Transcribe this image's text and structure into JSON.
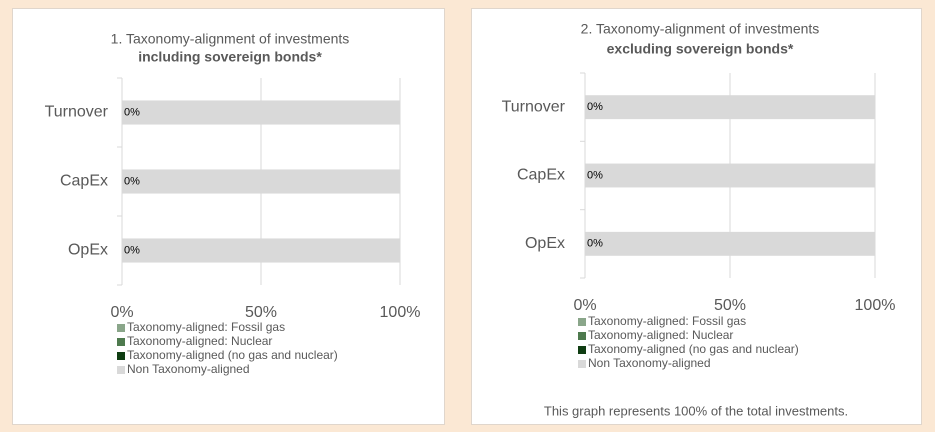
{
  "chart_data": [
    {
      "type": "stacked-barh",
      "title": "1. Taxonomy-alignment of investments",
      "subtitle": "including sovereign bonds*",
      "categories": [
        "Turnover",
        "CapEx",
        "OpEx"
      ],
      "series": [
        {
          "name": "Taxonomy-aligned: Fossil gas",
          "color": "#8aa68a",
          "values": [
            0,
            0,
            0
          ],
          "value_labels": [
            "0%",
            "0%",
            "0%"
          ]
        },
        {
          "name": "Taxonomy-aligned: Nuclear",
          "color": "#4e7a4e",
          "values": [
            0,
            0,
            0
          ]
        },
        {
          "name": "Taxonomy-aligned (no gas and nuclear)",
          "color": "#0f3d12",
          "values": [
            0,
            0,
            0
          ]
        },
        {
          "name": "Non Taxonomy-aligned",
          "color": "#d9d9d9",
          "values": [
            100,
            100,
            100
          ]
        }
      ],
      "xlim": [
        0,
        100
      ],
      "xticks": [
        {
          "value": 0,
          "label": "0%"
        },
        {
          "value": 50,
          "label": "50%"
        },
        {
          "value": 100,
          "label": "100%"
        }
      ],
      "grid": true
    },
    {
      "type": "stacked-barh",
      "title": "2. Taxonomy-alignment of investments",
      "subtitle": "excluding sovereign bonds*",
      "categories": [
        "Turnover",
        "CapEx",
        "OpEx"
      ],
      "series": [
        {
          "name": "Taxonomy-aligned: Fossil gas",
          "color": "#8aa68a",
          "values": [
            0,
            0,
            0
          ],
          "value_labels": [
            "0%",
            "0%",
            "0%"
          ]
        },
        {
          "name": "Taxonomy-aligned: Nuclear",
          "color": "#4e7a4e",
          "values": [
            0,
            0,
            0
          ]
        },
        {
          "name": "Taxonomy-aligned (no gas and nuclear)",
          "color": "#0f3d12",
          "values": [
            0,
            0,
            0
          ]
        },
        {
          "name": "Non Taxonomy-aligned",
          "color": "#d9d9d9",
          "values": [
            100,
            100,
            100
          ]
        }
      ],
      "xlim": [
        0,
        100
      ],
      "xticks": [
        {
          "value": 0,
          "label": "0%"
        },
        {
          "value": 50,
          "label": "50%"
        },
        {
          "value": 100,
          "label": "100%"
        }
      ],
      "grid": true,
      "footnote": "This graph represents 100% of the total investments."
    }
  ]
}
